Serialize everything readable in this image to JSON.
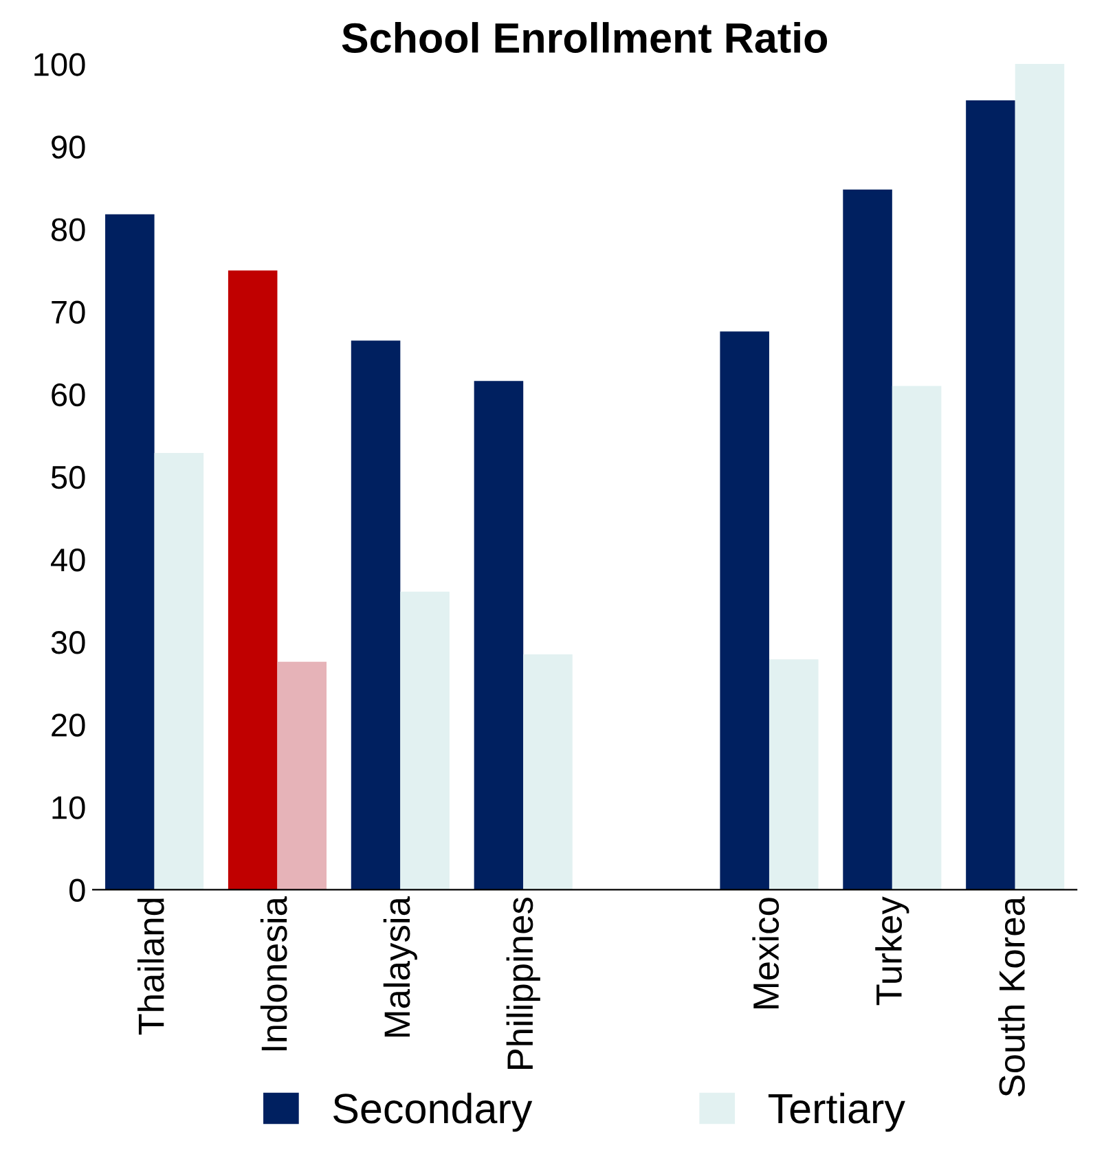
{
  "chart_data": {
    "type": "bar",
    "title": "School Enrollment Ratio",
    "categories": [
      "Thailand",
      "Indonesia",
      "Malaysia",
      "Philippines",
      null,
      "Mexico",
      "Turkey",
      "South Korea"
    ],
    "series": [
      {
        "name": "Secondary",
        "color": "#002060",
        "colors": [
          "#002060",
          "#c00000",
          "#002060",
          "#002060",
          "#002060",
          "#002060",
          "#002060",
          "#002060"
        ],
        "values": [
          81.8,
          75.0,
          66.5,
          61.6,
          null,
          67.6,
          84.8,
          95.6
        ]
      },
      {
        "name": "Tertiary",
        "color": "#e2f1f1",
        "colors": [
          "#e2f1f1",
          "#e6b3b8",
          "#e2f1f1",
          "#e2f1f1",
          "#e2f1f1",
          "#e2f1f1",
          "#e2f1f1",
          "#e2f1f1"
        ],
        "values": [
          52.9,
          27.6,
          36.1,
          28.5,
          null,
          27.9,
          61.0,
          100
        ]
      }
    ],
    "ylim": [
      0,
      100
    ],
    "yticks": [
      0,
      10,
      20,
      30,
      40,
      50,
      60,
      70,
      80,
      90,
      100
    ],
    "grid": false,
    "legend": "bottom"
  }
}
